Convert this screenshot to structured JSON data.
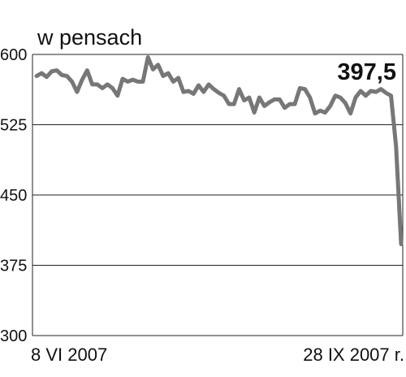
{
  "chart_data": {
    "type": "line",
    "title": "w pensach",
    "categories": [
      "8 VI 2007",
      null,
      null,
      null,
      null,
      null,
      null,
      null,
      null,
      null,
      null,
      null,
      null,
      null,
      null,
      null,
      null,
      null,
      null,
      null,
      null,
      null,
      null,
      null,
      null,
      null,
      null,
      null,
      null,
      null,
      null,
      null,
      null,
      null,
      null,
      null,
      null,
      null,
      null,
      null,
      null,
      null,
      null,
      null,
      null,
      null,
      null,
      null,
      null,
      null,
      null,
      null,
      null,
      null,
      null,
      null,
      null,
      null,
      null,
      null,
      null,
      null,
      null,
      null,
      null,
      null,
      null,
      null,
      null,
      null,
      null,
      null,
      "28 IX 2007 r."
    ],
    "series": [
      {
        "color": "#777777",
        "values": [
          577,
          580,
          576,
          582,
          583,
          578,
          577,
          571,
          560,
          573,
          583,
          568,
          568,
          564,
          568,
          564,
          556,
          574,
          571,
          573,
          571,
          571,
          597,
          584,
          589,
          577,
          580,
          571,
          575,
          560,
          561,
          558,
          567,
          560,
          568,
          563,
          559,
          556,
          547,
          547,
          563,
          551,
          554,
          538,
          554,
          545,
          549,
          552,
          552,
          543,
          547,
          547,
          564,
          563,
          554,
          537,
          540,
          538,
          545,
          556,
          554,
          548,
          537,
          554,
          561,
          556,
          561,
          560,
          563,
          559,
          556,
          502,
          397.5
        ],
        "value_labels": [
          null,
          null,
          null,
          null,
          null,
          null,
          null,
          null,
          null,
          null,
          null,
          null,
          null,
          null,
          null,
          null,
          null,
          null,
          null,
          null,
          null,
          null,
          null,
          null,
          null,
          null,
          null,
          null,
          null,
          null,
          null,
          null,
          null,
          null,
          null,
          null,
          null,
          null,
          null,
          null,
          null,
          null,
          null,
          null,
          null,
          null,
          null,
          null,
          null,
          null,
          null,
          null,
          null,
          null,
          null,
          null,
          null,
          null,
          null,
          null,
          null,
          null,
          null,
          null,
          null,
          null,
          null,
          null,
          null,
          null,
          null,
          null,
          "397,5"
        ]
      }
    ],
    "ylim": [
      300,
      600
    ],
    "yticks": [
      300,
      375,
      450,
      525,
      600
    ],
    "grid": true
  }
}
